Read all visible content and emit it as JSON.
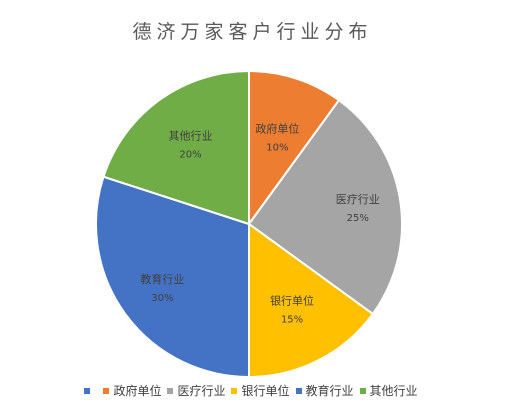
{
  "chart_data": {
    "type": "pie",
    "title": "德济万家客户行业分布",
    "slices": [
      {
        "label": "政府单位",
        "value": 10,
        "value_label": "10%",
        "color": "#ed7d31"
      },
      {
        "label": "医疗行业",
        "value": 25,
        "value_label": "25%",
        "color": "#a5a5a5"
      },
      {
        "label": "银行单位",
        "value": 15,
        "value_label": "15%",
        "color": "#ffc000"
      },
      {
        "label": "教育行业",
        "value": 30,
        "value_label": "30%",
        "color": "#4472c4"
      },
      {
        "label": "其他行业",
        "value": 20,
        "value_label": "20%",
        "color": "#70ad47"
      }
    ],
    "start_angle_deg": 0,
    "direction": "clockwise",
    "legend_position": "bottom"
  }
}
